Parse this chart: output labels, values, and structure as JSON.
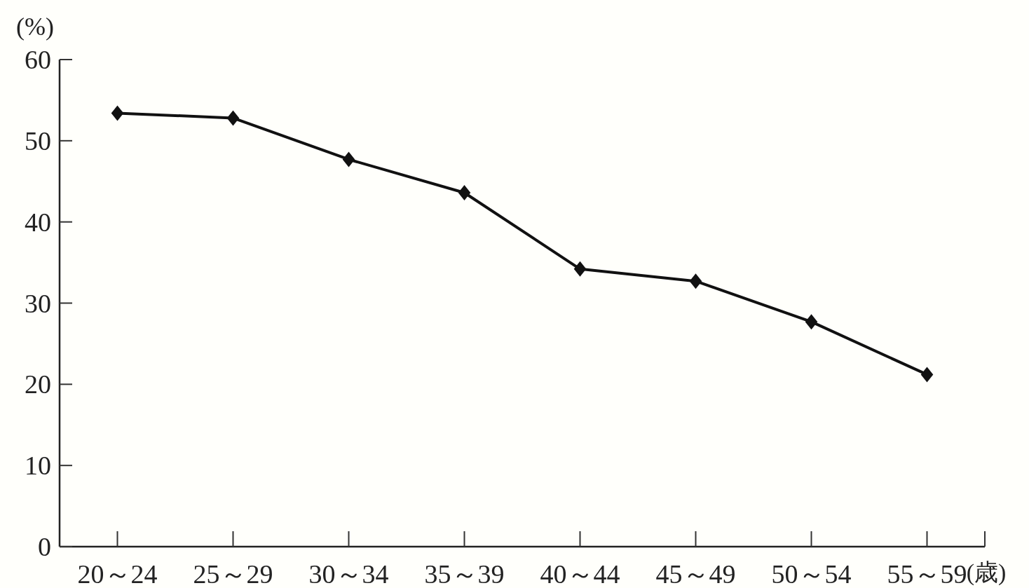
{
  "chart_data": {
    "type": "line",
    "ylabel": "(%)",
    "xlabel": "(歳)",
    "categories": [
      "20～24",
      "25～29",
      "30～34",
      "35～39",
      "40～44",
      "45～49",
      "50～54",
      "55～59"
    ],
    "series": [
      {
        "color": "#111111",
        "values": [
          53.4,
          52.8,
          47.7,
          43.6,
          34.2,
          32.7,
          27.7,
          21.2
        ]
      }
    ],
    "ylim": [
      0,
      60
    ],
    "yticks": [
      0,
      10,
      20,
      30,
      40,
      50,
      60
    ],
    "marker": "diamond",
    "line_style": "solid",
    "grid": false
  }
}
